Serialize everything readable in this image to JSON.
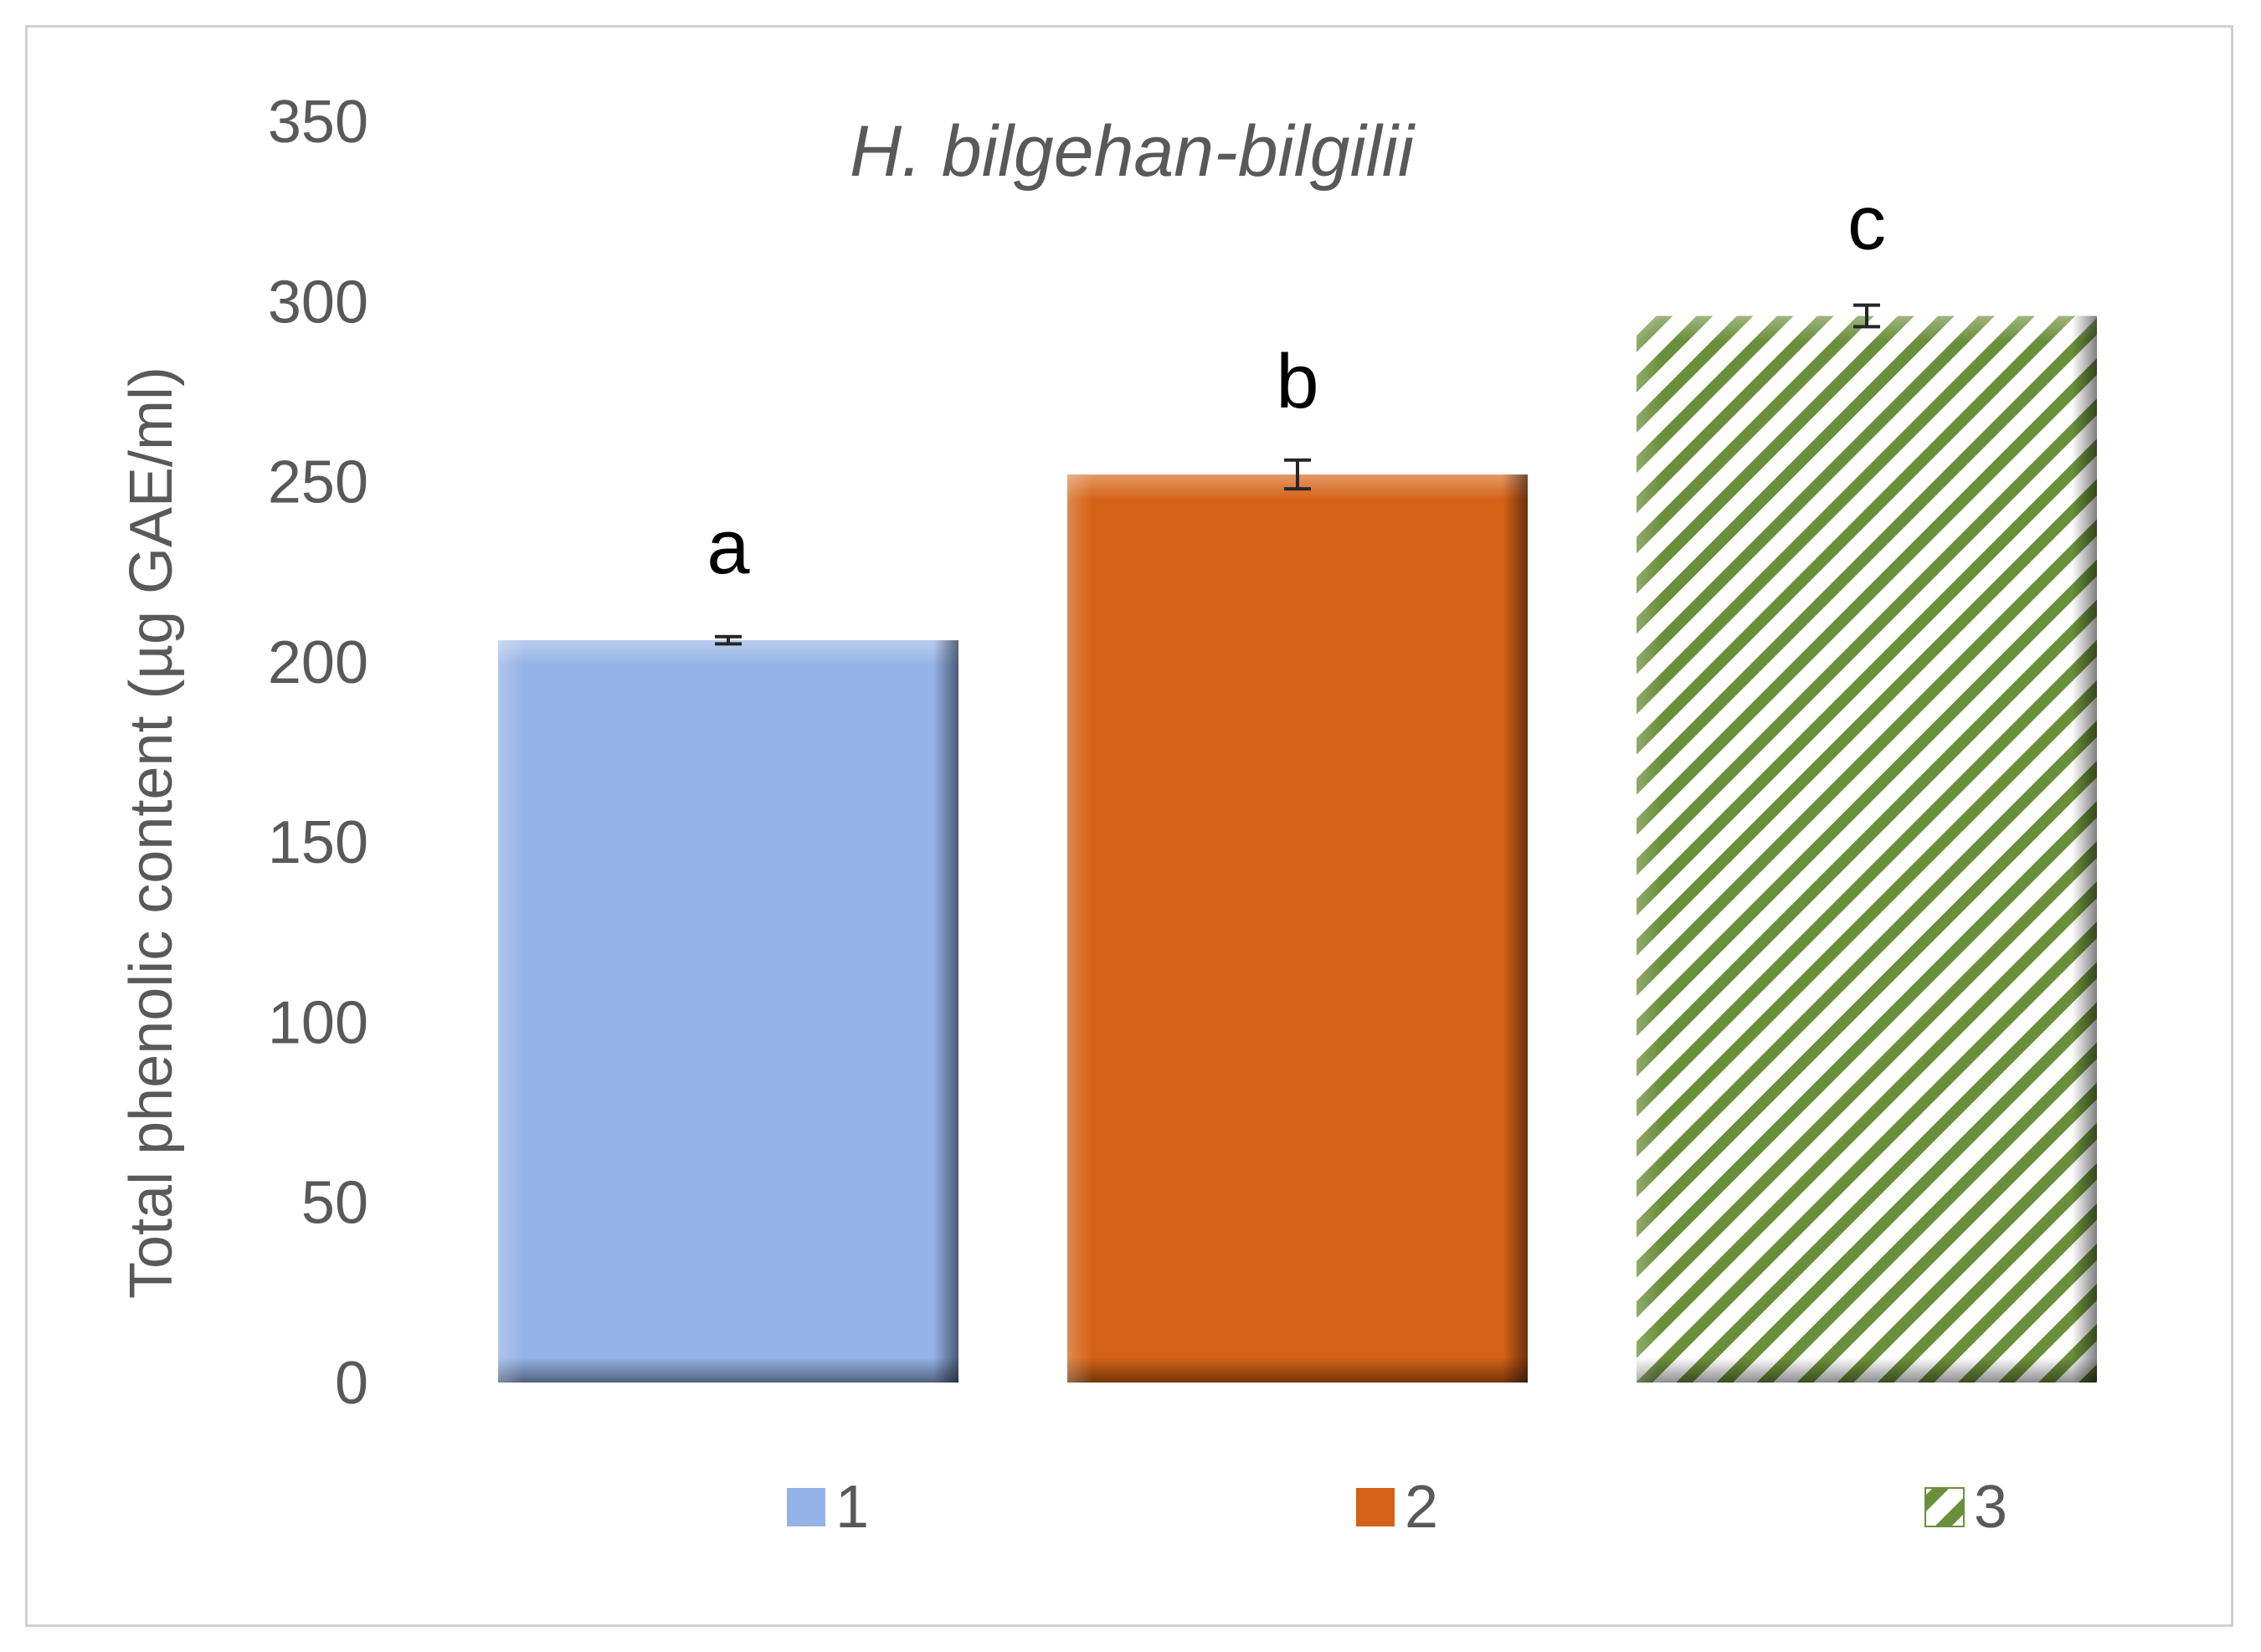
{
  "chart_data": {
    "type": "bar",
    "title": "H. bilgehan-bilgilii",
    "ylabel": "Total phenolic content (µg GAE/ml)",
    "xlabel": "",
    "ylim": [
      0,
      350
    ],
    "yticks": [
      0,
      50,
      100,
      150,
      200,
      250,
      300,
      350
    ],
    "categories": [
      "1",
      "2",
      "3"
    ],
    "values": [
      206,
      252,
      296
    ],
    "errors": [
      1,
      4,
      3
    ],
    "significance_labels": [
      "a",
      "b",
      "c"
    ],
    "colors": [
      "#95b3e7",
      "#d46216",
      "#6a8f3a"
    ],
    "fill_styles": [
      "solid-bevel",
      "solid-bevel",
      "diagonal-stripes"
    ],
    "legend": {
      "placement": "bottom",
      "entries": [
        "1",
        "2",
        "3"
      ]
    },
    "grid": false
  }
}
